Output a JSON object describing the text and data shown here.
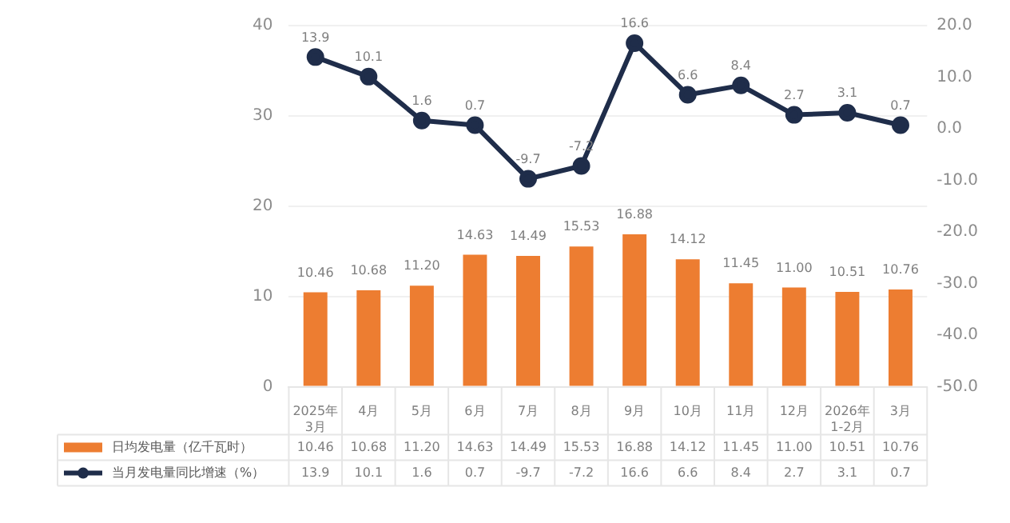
{
  "chart_data": {
    "type": "bar",
    "categories": [
      "2025年3月",
      "4月",
      "5月",
      "6月",
      "7月",
      "8月",
      "9月",
      "10月",
      "11月",
      "12月",
      "2026年1-2月",
      "3月"
    ],
    "series": [
      {
        "name": "日均发电量（亿千瓦时）",
        "color": "#ed7d31",
        "values": [
          10.46,
          10.68,
          11.2,
          14.63,
          14.49,
          15.53,
          16.88,
          14.12,
          11.45,
          11.0,
          10.51,
          10.76
        ],
        "value_labels": [
          "10.46",
          "10.68",
          "11.20",
          "14.63",
          "14.49",
          "15.53",
          "16.88",
          "14.12",
          "11.45",
          "11.00",
          "10.51",
          "10.76"
        ]
      },
      {
        "name": "当月发电量同比增速（%）",
        "type": "line",
        "axis": "y2",
        "color": "#1f2d4a",
        "values": [
          13.9,
          10.1,
          1.6,
          0.7,
          -9.7,
          -7.2,
          16.6,
          6.6,
          8.4,
          2.7,
          3.1,
          0.7
        ],
        "value_labels": [
          "13.9",
          "10.1",
          "1.6",
          "0.7",
          "-9.7",
          "-7.2",
          "16.6",
          "6.6",
          "8.4",
          "2.7",
          "3.1",
          "0.7"
        ]
      }
    ],
    "ylim": [
      0,
      40
    ],
    "yticks": [
      0,
      10,
      20,
      30,
      40
    ],
    "y2lim": [
      -50,
      20
    ],
    "y2ticks": [
      {
        "value": -50,
        "label": "-50.0"
      },
      {
        "value": -40,
        "label": "-40.0"
      },
      {
        "value": -30,
        "label": "-30.0"
      },
      {
        "value": -20,
        "label": "-20.0"
      },
      {
        "value": -10,
        "label": "-10.0"
      },
      {
        "value": 0,
        "label": "0.0"
      },
      {
        "value": 10,
        "label": "10.0"
      },
      {
        "value": 20,
        "label": "20.0"
      }
    ],
    "grid": "y",
    "legend": "bottom",
    "marker": "circle",
    "line_style": "solid"
  }
}
